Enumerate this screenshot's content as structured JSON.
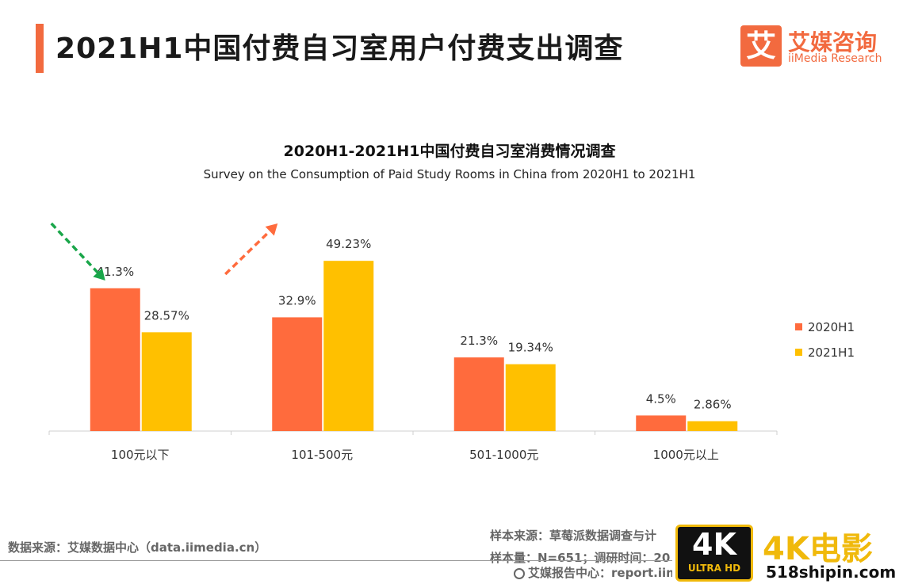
{
  "header": {
    "title": "2021H1中国付费自习室用户付费支出调查",
    "logo": {
      "mark": "艾",
      "name_cn": "艾媒咨询",
      "name_en": "iiMedia Research"
    }
  },
  "colors": {
    "accent": "#f26a3f",
    "series_2020": "#ff6b3d",
    "series_2021": "#ffc000",
    "trend_down": "#1aa64a",
    "trend_up": "#ff6b3d"
  },
  "chart_data": {
    "type": "bar",
    "title": "2020H1-2021H1中国付费自习室消费情况调查",
    "subtitle": "Survey on the Consumption of Paid Study Rooms in China from 2020H1 to 2021H1",
    "xlabel": "",
    "ylabel": "",
    "ylim": [
      0,
      55
    ],
    "grid": false,
    "legend_position": "right",
    "categories": [
      "100元以下",
      "101-500元",
      "501-1000元",
      "1000元以上"
    ],
    "series": [
      {
        "name": "2020H1",
        "values": [
          41.3,
          32.9,
          21.3,
          4.5
        ],
        "labels": [
          "41.3%",
          "32.9%",
          "21.3%",
          "4.5%"
        ]
      },
      {
        "name": "2021H1",
        "values": [
          28.57,
          49.23,
          19.34,
          2.86
        ],
        "labels": [
          "28.57%",
          "49.23%",
          "19.34%",
          "2.86%"
        ]
      }
    ],
    "annotations": [
      {
        "type": "trend-arrow",
        "direction": "down",
        "category": "100元以下"
      },
      {
        "type": "trend-arrow",
        "direction": "up",
        "category": "101-500元"
      }
    ]
  },
  "footer": {
    "source": "数据来源：艾媒数据中心（data.iimedia.cn）",
    "sample_source": "样本来源：草莓派数据调查与计",
    "sample_size": "样本量：N=651；调研时间：20",
    "report_center": "艾媒报告中心：report.iim"
  },
  "watermark": {
    "badge_big": "4K",
    "badge_small": "ULTRA HD",
    "title": "4K电影",
    "url": "518shipin.com"
  }
}
